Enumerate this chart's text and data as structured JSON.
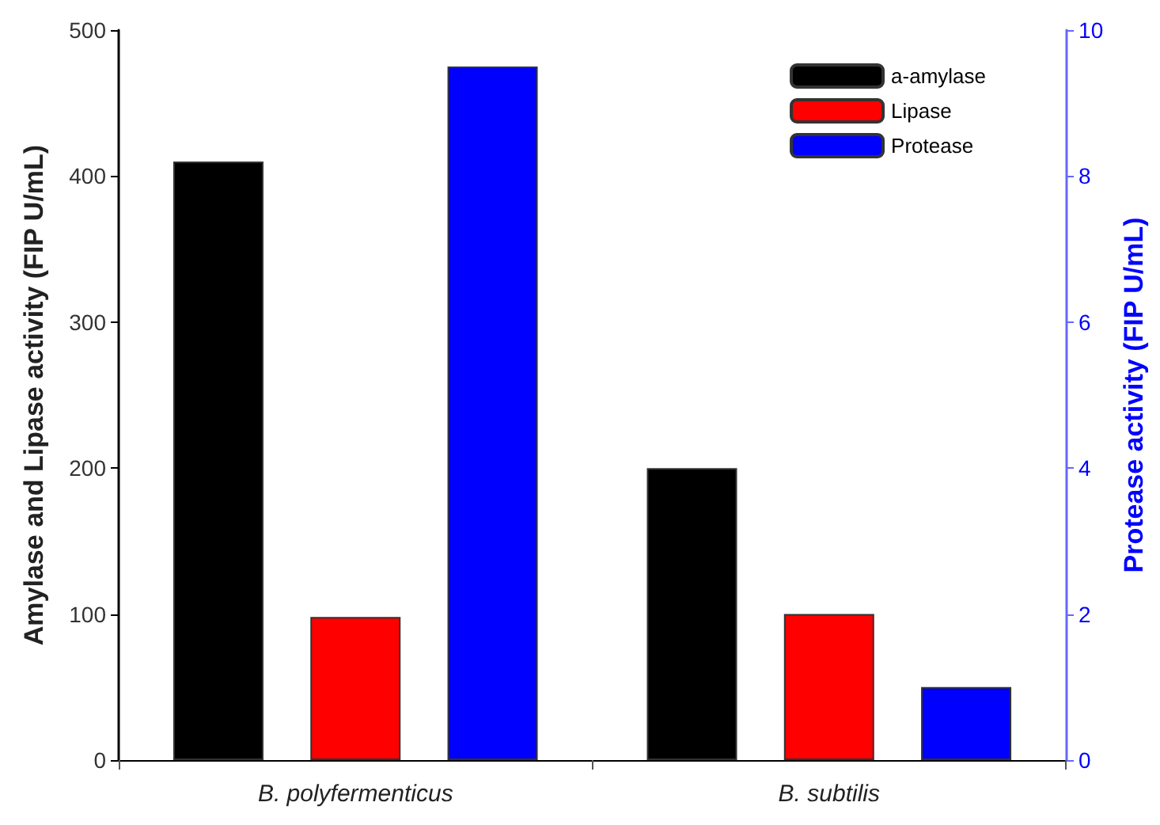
{
  "chart_data": {
    "type": "bar",
    "categories": [
      "B. polyfermenticus",
      "B. subtilis"
    ],
    "series": [
      {
        "name": "a-amylase",
        "color": "#000000",
        "values": [
          410,
          200
        ]
      },
      {
        "name": "Lipase",
        "color": "#ff0000",
        "values": [
          98,
          100
        ]
      },
      {
        "name": "Protease",
        "color": "#0000ff",
        "values": [
          9.5,
          1.0
        ],
        "axis": "y2"
      }
    ],
    "ylabel": "Amylase and Lipase activity (FIP U/mL)",
    "y2label": "Protease activity (FIP U/mL)",
    "ylim": [
      0,
      500
    ],
    "yticks": [
      0,
      100,
      200,
      300,
      400,
      500
    ],
    "y2lim": [
      0,
      10
    ],
    "y2ticks": [
      0,
      2,
      4,
      6,
      8,
      10
    ],
    "legend": "top right",
    "grid": false
  }
}
